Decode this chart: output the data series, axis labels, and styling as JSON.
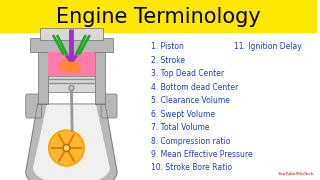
{
  "title": "Engine Terminology",
  "title_bg_color": "#FFE800",
  "title_fontsize": 15,
  "title_color": "#000000",
  "bg_color": "#FFFFFF",
  "list_color": "#1a3fc4",
  "list_items": [
    "1. Piston",
    "2. Stroke",
    "3. Top Dead Center",
    "4. Bottom dead Center",
    "5. Clearance Volume",
    "6. Swept Volume",
    "7. Total Volume",
    "8. Compression ratio",
    "9. Mean Effective Pressure",
    "10. Stroke Bore Ratio"
  ],
  "extra_item": "11. Ignition Delay",
  "watermark": "YouTube/EloTech",
  "gray": "#B8B8B8",
  "lgray": "#D8D8D8",
  "white": "#F0F0F0",
  "pink": "#FF7BAC",
  "orange1": "#FFA500",
  "orange2": "#FFB732",
  "spoke_color": "#E08000",
  "purple": "#9933CC",
  "green": "#22AA22",
  "rod_color": "#999999",
  "edge_color": "#707070"
}
